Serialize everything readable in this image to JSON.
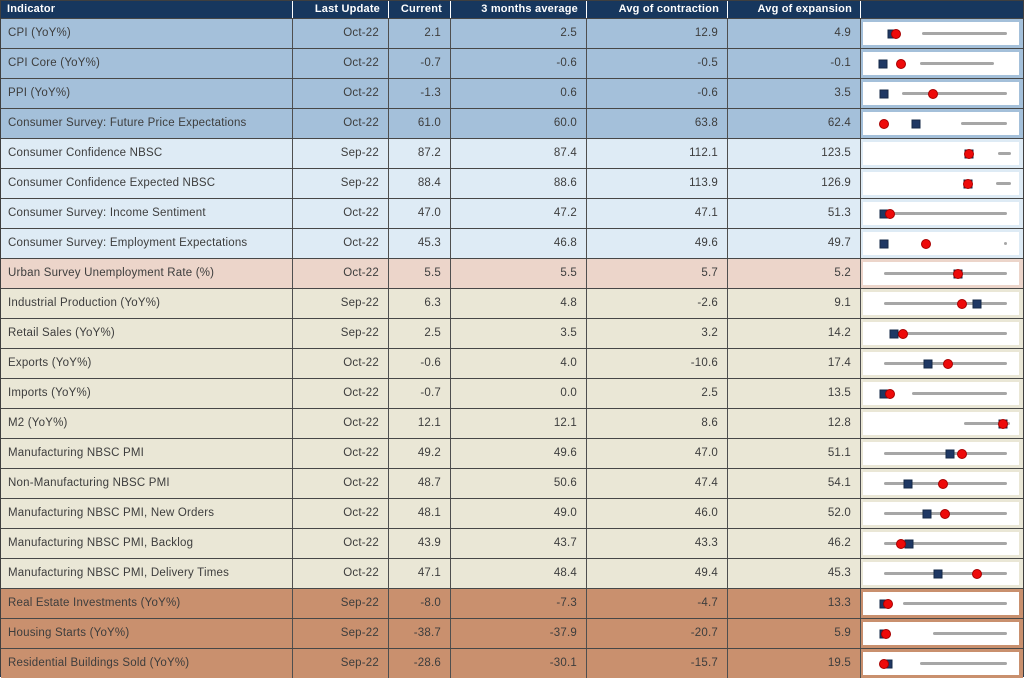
{
  "table": {
    "columns": [
      "Indicator",
      "Last Update",
      "Current",
      "3 months average",
      "Avg of contraction",
      "Avg of expansion",
      ""
    ],
    "group_colors": {
      "blue": "#A4C0DA",
      "lightblue": "#DEEBF5",
      "pink": "#ECD5CA",
      "beige": "#EAE7D6",
      "brown": "#C9906E"
    },
    "rows": [
      {
        "indicator": "CPI (YoY%)",
        "last_update": "Oct-22",
        "current": "2.1",
        "avg_3m": "2.5",
        "avg_contraction": "12.9",
        "avg_expansion": "4.9",
        "group": "blue"
      },
      {
        "indicator": "CPI Core (YoY%)",
        "last_update": "Oct-22",
        "current": "-0.7",
        "avg_3m": "-0.6",
        "avg_contraction": "-0.5",
        "avg_expansion": "-0.1",
        "group": "blue"
      },
      {
        "indicator": "PPI (YoY%)",
        "last_update": "Oct-22",
        "current": "-1.3",
        "avg_3m": "0.6",
        "avg_contraction": "-0.6",
        "avg_expansion": "3.5",
        "group": "blue"
      },
      {
        "indicator": "Consumer Survey: Future Price Expectations",
        "last_update": "Oct-22",
        "current": "61.0",
        "avg_3m": "60.0",
        "avg_contraction": "63.8",
        "avg_expansion": "62.4",
        "group": "blue"
      },
      {
        "indicator": "Consumer Confidence NBSC",
        "last_update": "Sep-22",
        "current": "87.2",
        "avg_3m": "87.4",
        "avg_contraction": "112.1",
        "avg_expansion": "123.5",
        "group": "lightblue"
      },
      {
        "indicator": "Consumer Confidence Expected NBSC",
        "last_update": "Sep-22",
        "current": "88.4",
        "avg_3m": "88.6",
        "avg_contraction": "113.9",
        "avg_expansion": "126.9",
        "group": "lightblue"
      },
      {
        "indicator": "Consumer Survey: Income Sentiment",
        "last_update": "Oct-22",
        "current": "47.0",
        "avg_3m": "47.2",
        "avg_contraction": "47.1",
        "avg_expansion": "51.3",
        "group": "lightblue"
      },
      {
        "indicator": "Consumer Survey: Employment Expectations",
        "last_update": "Oct-22",
        "current": "45.3",
        "avg_3m": "46.8",
        "avg_contraction": "49.6",
        "avg_expansion": "49.7",
        "group": "lightblue"
      },
      {
        "indicator": "Urban Survey Unemployment Rate (%)",
        "last_update": "Oct-22",
        "current": "5.5",
        "avg_3m": "5.5",
        "avg_contraction": "5.7",
        "avg_expansion": "5.2",
        "group": "pink"
      },
      {
        "indicator": "Industrial Production (YoY%)",
        "last_update": "Sep-22",
        "current": "6.3",
        "avg_3m": "4.8",
        "avg_contraction": "-2.6",
        "avg_expansion": "9.1",
        "group": "beige"
      },
      {
        "indicator": "Retail Sales (YoY%)",
        "last_update": "Sep-22",
        "current": "2.5",
        "avg_3m": "3.5",
        "avg_contraction": "3.2",
        "avg_expansion": "14.2",
        "group": "beige"
      },
      {
        "indicator": "Exports (YoY%)",
        "last_update": "Oct-22",
        "current": "-0.6",
        "avg_3m": "4.0",
        "avg_contraction": "-10.6",
        "avg_expansion": "17.4",
        "group": "beige"
      },
      {
        "indicator": "Imports (YoY%)",
        "last_update": "Oct-22",
        "current": "-0.7",
        "avg_3m": "0.0",
        "avg_contraction": "2.5",
        "avg_expansion": "13.5",
        "group": "beige"
      },
      {
        "indicator": "M2 (YoY%)",
        "last_update": "Oct-22",
        "current": "12.1",
        "avg_3m": "12.1",
        "avg_contraction": "8.6",
        "avg_expansion": "12.8",
        "group": "beige"
      },
      {
        "indicator": "Manufacturing NBSC PMI",
        "last_update": "Oct-22",
        "current": "49.2",
        "avg_3m": "49.6",
        "avg_contraction": "47.0",
        "avg_expansion": "51.1",
        "group": "beige"
      },
      {
        "indicator": "Non-Manufacturing NBSC PMI",
        "last_update": "Oct-22",
        "current": "48.7",
        "avg_3m": "50.6",
        "avg_contraction": "47.4",
        "avg_expansion": "54.1",
        "group": "beige"
      },
      {
        "indicator": "Manufacturing NBSC PMI, New Orders",
        "last_update": "Oct-22",
        "current": "48.1",
        "avg_3m": "49.0",
        "avg_contraction": "46.0",
        "avg_expansion": "52.0",
        "group": "beige"
      },
      {
        "indicator": "Manufacturing NBSC PMI, Backlog",
        "last_update": "Oct-22",
        "current": "43.9",
        "avg_3m": "43.7",
        "avg_contraction": "43.3",
        "avg_expansion": "46.2",
        "group": "beige"
      },
      {
        "indicator": "Manufacturing NBSC PMI, Delivery Times",
        "last_update": "Oct-22",
        "current": "47.1",
        "avg_3m": "48.4",
        "avg_contraction": "49.4",
        "avg_expansion": "45.3",
        "group": "beige"
      },
      {
        "indicator": "Real Estate Investments (YoY%)",
        "last_update": "Sep-22",
        "current": "-8.0",
        "avg_3m": "-7.3",
        "avg_contraction": "-4.7",
        "avg_expansion": "13.3",
        "group": "brown"
      },
      {
        "indicator": "Housing Starts (YoY%)",
        "last_update": "Sep-22",
        "current": "-38.7",
        "avg_3m": "-37.9",
        "avg_contraction": "-20.7",
        "avg_expansion": "5.9",
        "group": "brown"
      },
      {
        "indicator": "Residential Buildings Sold (YoY%)",
        "last_update": "Sep-22",
        "current": "-28.6",
        "avg_3m": "-30.1",
        "avg_contraction": "-15.7",
        "avg_expansion": "19.5",
        "group": "brown"
      }
    ]
  },
  "sparkline_colors": {
    "header_bg": "#17375E",
    "range_line": "#A6A6A6",
    "current_square": "#1F3864",
    "average_circle": "#EE0A0A"
  }
}
